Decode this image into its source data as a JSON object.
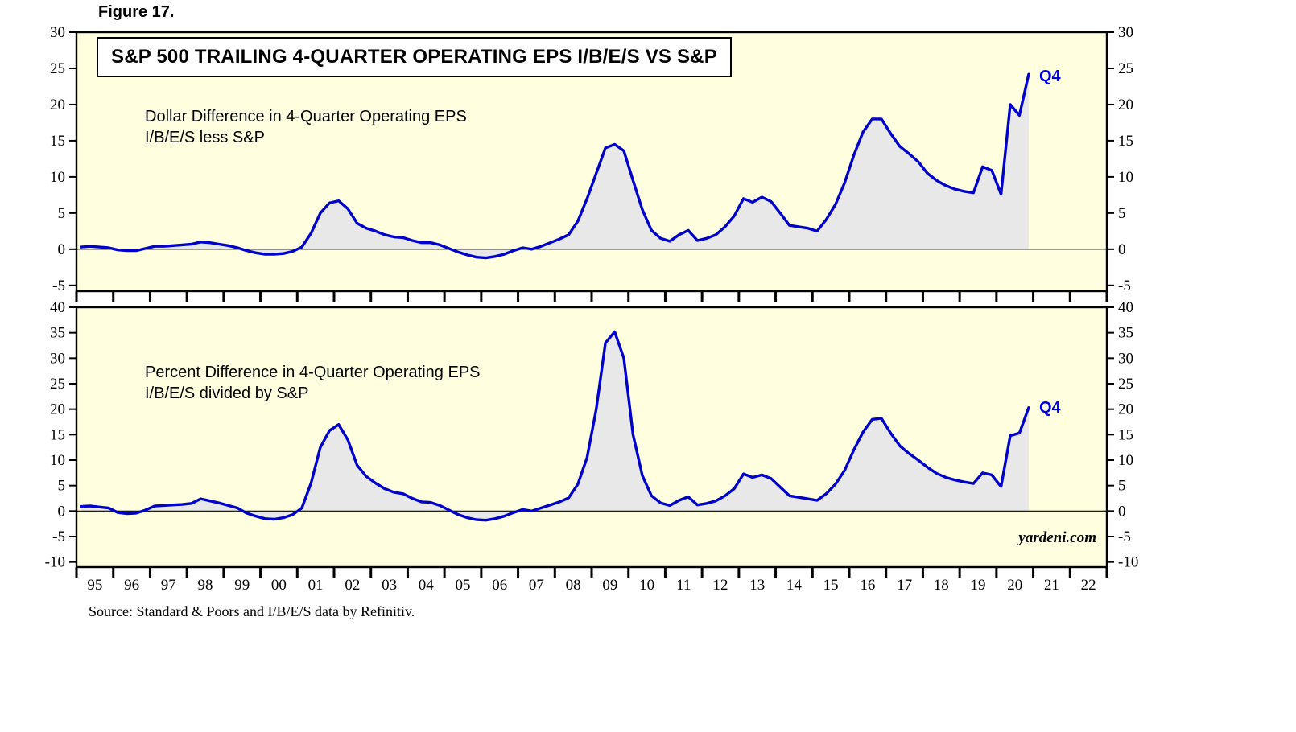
{
  "figure": {
    "label": "Figure 17."
  },
  "source": {
    "text": "Source: Standard & Poors and I/B/E/S data by Refinitiv."
  },
  "watermark": "yardeni.com",
  "colors": {
    "line": "#0000CD",
    "fill": "#E8E8E8",
    "panel_background": "#FFFFE0",
    "frame": "#000000",
    "end_label": "#0000EE"
  },
  "x_axis": {
    "tick_labels": [
      "95",
      "96",
      "97",
      "98",
      "99",
      "00",
      "01",
      "02",
      "03",
      "04",
      "05",
      "06",
      "07",
      "08",
      "09",
      "10",
      "11",
      "12",
      "13",
      "14",
      "15",
      "16",
      "17",
      "18",
      "19",
      "20",
      "21",
      "22"
    ],
    "frequency": "quarterly"
  },
  "chart_data": [
    {
      "type": "line",
      "title": "S&P 500 TRAILING 4-QUARTER OPERATING EPS I/B/E/S VS S&P",
      "annotation": "Dollar Difference in 4-Quarter Operating EPS\nI/B/E/S less S&P",
      "end_label": "Q4",
      "series_start": "1995Q1",
      "yticks": [
        30,
        25,
        20,
        15,
        10,
        5,
        0,
        -5
      ],
      "ylim": [
        -5.8,
        30
      ],
      "values": [
        0.3,
        0.4,
        0.3,
        0.2,
        -0.1,
        -0.2,
        -0.2,
        0.1,
        0.4,
        0.4,
        0.5,
        0.6,
        0.7,
        1.0,
        0.9,
        0.7,
        0.5,
        0.2,
        -0.2,
        -0.5,
        -0.7,
        -0.7,
        -0.6,
        -0.3,
        0.3,
        2.2,
        5.0,
        6.4,
        6.7,
        5.6,
        3.6,
        2.9,
        2.5,
        2.0,
        1.7,
        1.6,
        1.2,
        0.9,
        0.9,
        0.6,
        0.1,
        -0.4,
        -0.8,
        -1.1,
        -1.2,
        -1.0,
        -0.7,
        -0.2,
        0.2,
        0.0,
        0.4,
        0.9,
        1.4,
        2.0,
        3.9,
        7.0,
        10.5,
        14.0,
        14.5,
        13.6,
        9.5,
        5.5,
        2.6,
        1.5,
        1.1,
        2.0,
        2.6,
        1.2,
        1.5,
        2.0,
        3.1,
        4.6,
        7.0,
        6.5,
        7.2,
        6.6,
        5.0,
        3.3,
        3.1,
        2.9,
        2.5,
        4.1,
        6.2,
        9.2,
        13.0,
        16.2,
        18.0,
        18.0,
        16.0,
        14.2,
        13.2,
        12.1,
        10.5,
        9.5,
        8.8,
        8.3,
        8.0,
        7.8,
        11.4,
        10.9,
        7.6,
        20.0,
        18.5,
        24.2
      ]
    },
    {
      "type": "line",
      "title": "",
      "annotation": "Percent Difference in 4-Quarter Operating EPS\nI/B/E/S divided by S&P",
      "end_label": "Q4",
      "series_start": "1995Q1",
      "yticks": [
        40,
        35,
        30,
        25,
        20,
        15,
        10,
        5,
        0,
        -5,
        -10
      ],
      "ylim": [
        -11,
        40
      ],
      "values": [
        0.9,
        1.0,
        0.8,
        0.6,
        -0.3,
        -0.5,
        -0.4,
        0.2,
        1.0,
        1.1,
        1.2,
        1.3,
        1.5,
        2.4,
        2.0,
        1.6,
        1.1,
        0.6,
        -0.4,
        -1.0,
        -1.5,
        -1.6,
        -1.3,
        -0.7,
        0.6,
        5.5,
        12.5,
        15.8,
        17.0,
        14.0,
        9.0,
        6.8,
        5.5,
        4.4,
        3.7,
        3.4,
        2.5,
        1.8,
        1.7,
        1.1,
        0.2,
        -0.7,
        -1.3,
        -1.7,
        -1.8,
        -1.5,
        -1.0,
        -0.3,
        0.3,
        0.0,
        0.6,
        1.2,
        1.8,
        2.6,
        5.3,
        10.5,
        20.0,
        33.0,
        35.2,
        30.0,
        15.0,
        7.0,
        3.0,
        1.6,
        1.1,
        2.1,
        2.8,
        1.2,
        1.5,
        2.0,
        3.0,
        4.4,
        7.3,
        6.6,
        7.1,
        6.4,
        4.7,
        3.0,
        2.7,
        2.4,
        2.1,
        3.4,
        5.3,
        8.0,
        12.0,
        15.5,
        18.0,
        18.2,
        15.3,
        12.8,
        11.3,
        10.0,
        8.6,
        7.4,
        6.6,
        6.1,
        5.7,
        5.4,
        7.5,
        7.1,
        4.8,
        14.8,
        15.3,
        20.3
      ]
    }
  ]
}
